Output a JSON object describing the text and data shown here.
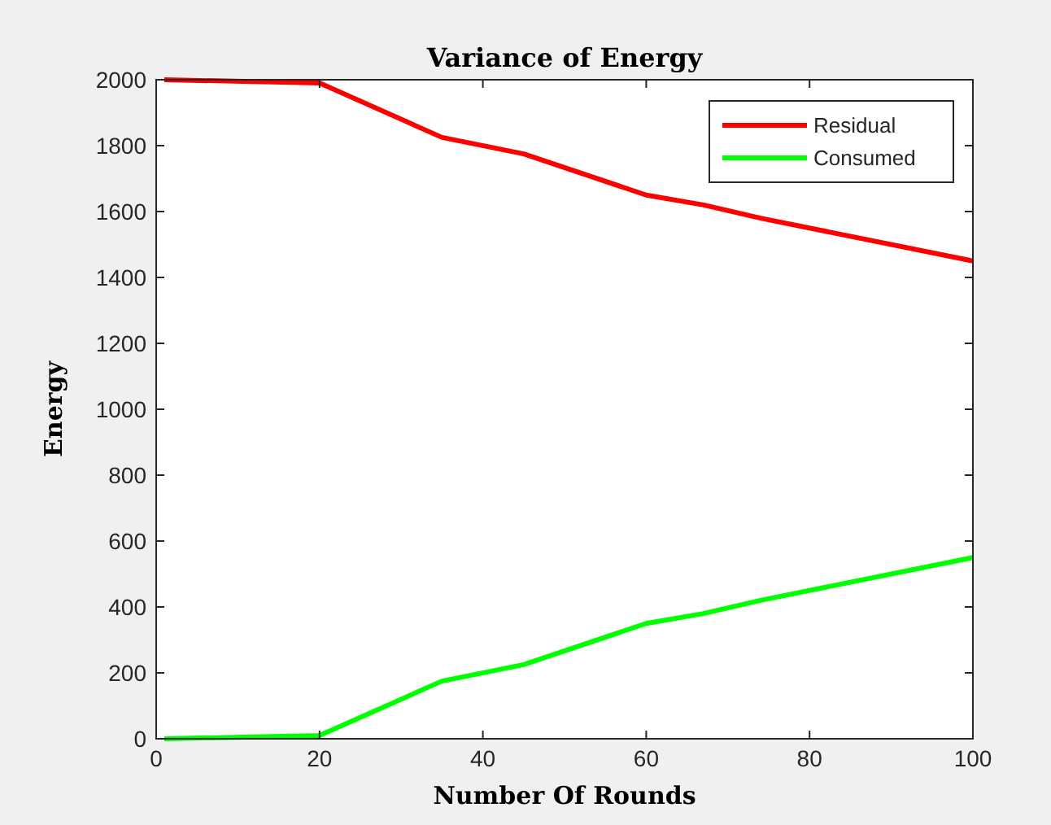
{
  "chart_data": {
    "type": "line",
    "title": "Variance of Energy",
    "xlabel": "Number Of Rounds",
    "ylabel": "Energy",
    "x": [
      1,
      20,
      35,
      45,
      60,
      67,
      74,
      100
    ],
    "series": [
      {
        "name": "Residual",
        "color": "#ff0000",
        "values": [
          2000,
          1990,
          1825,
          1775,
          1650,
          1620,
          1580,
          1450
        ]
      },
      {
        "name": "Consumed",
        "color": "#00ff00",
        "values": [
          0,
          10,
          175,
          225,
          350,
          380,
          420,
          550
        ]
      }
    ],
    "xlim": [
      0,
      100
    ],
    "xticks": [
      0,
      20,
      40,
      60,
      80,
      100
    ],
    "ylim": [
      0,
      2000
    ],
    "yticks": [
      0,
      200,
      400,
      600,
      800,
      1000,
      1200,
      1400,
      1600,
      1800,
      2000
    ],
    "grid": false,
    "legend": "top right",
    "marker": "none",
    "line_style": "solid"
  }
}
